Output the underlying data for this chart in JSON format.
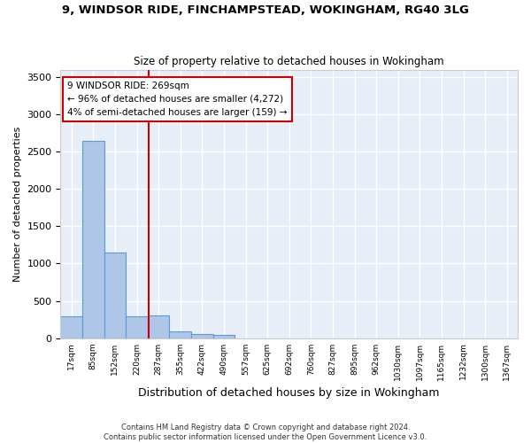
{
  "title": "9, WINDSOR RIDE, FINCHAMPSTEAD, WOKINGHAM, RG40 3LG",
  "subtitle": "Size of property relative to detached houses in Wokingham",
  "xlabel": "Distribution of detached houses by size in Wokingham",
  "ylabel": "Number of detached properties",
  "bin_labels": [
    "17sqm",
    "85sqm",
    "152sqm",
    "220sqm",
    "287sqm",
    "355sqm",
    "422sqm",
    "490sqm",
    "557sqm",
    "625sqm",
    "692sqm",
    "760sqm",
    "827sqm",
    "895sqm",
    "962sqm",
    "1030sqm",
    "1097sqm",
    "1165sqm",
    "1232sqm",
    "1300sqm",
    "1367sqm"
  ],
  "bar_values": [
    290,
    2650,
    1145,
    295,
    300,
    95,
    55,
    40,
    0,
    0,
    0,
    0,
    0,
    0,
    0,
    0,
    0,
    0,
    0,
    0,
    0
  ],
  "bar_color": "#aec6e8",
  "bar_edge_color": "#5b9bd5",
  "vline_x": 3.55,
  "annotation_text": "9 WINDSOR RIDE: 269sqm\n← 96% of detached houses are smaller (4,272)\n4% of semi-detached houses are larger (159) →",
  "annotation_box_color": "#ffffff",
  "annotation_box_edge": "#cc0000",
  "vline_color": "#cc0000",
  "ylim": [
    0,
    3600
  ],
  "yticks": [
    0,
    500,
    1000,
    1500,
    2000,
    2500,
    3000,
    3500
  ],
  "background_color": "#e8eef8",
  "grid_color": "#ffffff",
  "footer_line1": "Contains HM Land Registry data © Crown copyright and database right 2024.",
  "footer_line2": "Contains public sector information licensed under the Open Government Licence v3.0."
}
